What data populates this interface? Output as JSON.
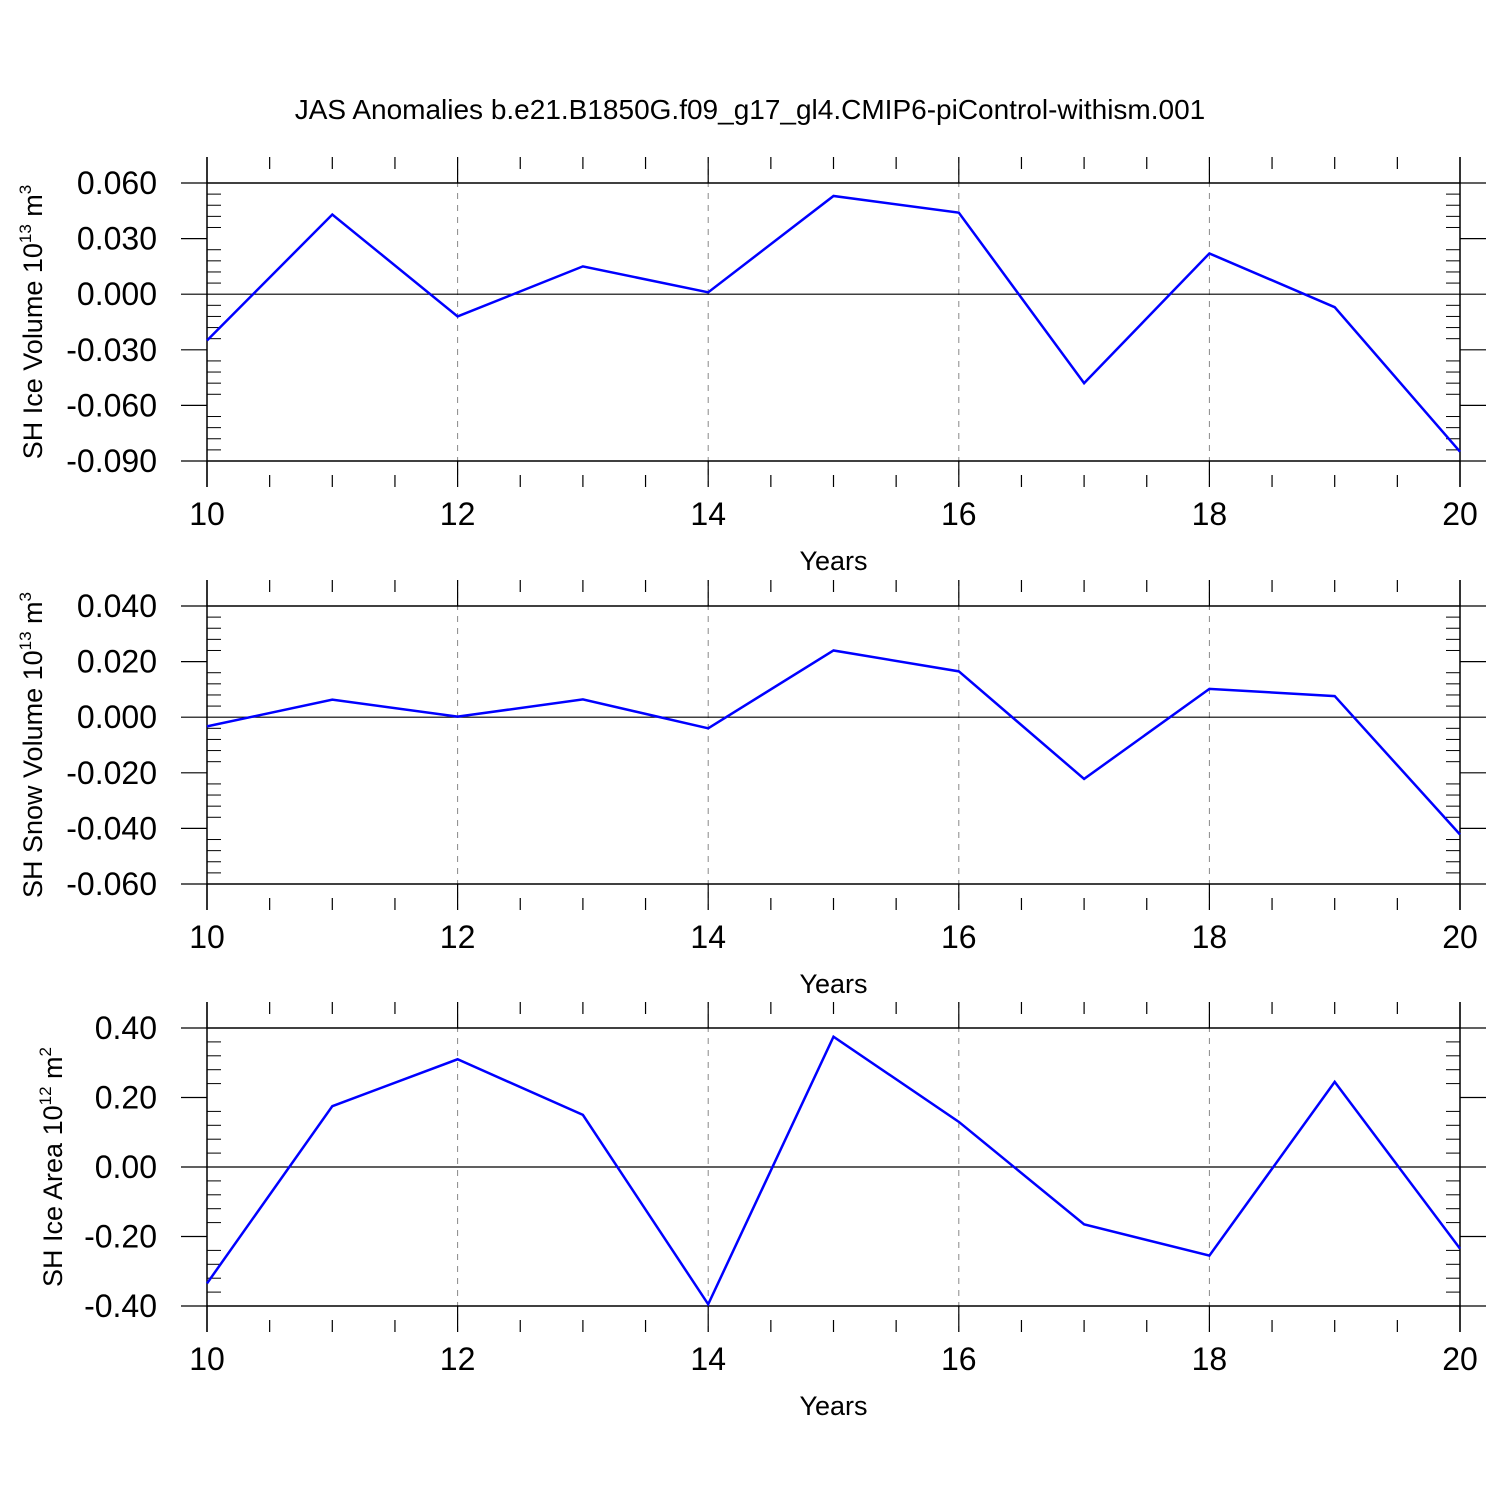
{
  "title": "JAS Anomalies b.e21.B1850G.f09_g17_gl4.CMIP6-piControl-withism.001",
  "line_color": "#0000ff",
  "grid_color": "#888888",
  "chart_data": [
    {
      "type": "line",
      "xlabel": "Years",
      "ylabel": {
        "prefix": "SH Ice Volume 10",
        "exp": "13",
        "unit": " m",
        "unit_exp": "3"
      },
      "xlim": [
        10,
        20
      ],
      "ylim": [
        -0.09,
        0.06
      ],
      "xticks": [
        10,
        12,
        14,
        16,
        18,
        20
      ],
      "xtick_labels": [
        "10",
        "12",
        "14",
        "16",
        "18",
        "20"
      ],
      "yticks": [
        0.06,
        0.03,
        0.0,
        -0.03,
        -0.06,
        -0.09
      ],
      "ytick_labels": [
        "0.060",
        "0.030",
        "0.000",
        "-0.030",
        "-0.060",
        "-0.090"
      ],
      "grid": "vertical dashed at major x ticks; solid line at y = 0",
      "x": [
        10,
        11,
        12,
        13,
        14,
        15,
        16,
        17,
        18,
        19,
        20
      ],
      "series": [
        {
          "values": [
            -0.025,
            0.043,
            -0.012,
            0.015,
            0.001,
            0.053,
            0.044,
            -0.048,
            0.022,
            -0.007,
            -0.085
          ]
        }
      ]
    },
    {
      "type": "line",
      "xlabel": "Years",
      "ylabel": {
        "prefix": "SH Snow Volume 10",
        "exp": "13",
        "unit": " m",
        "unit_exp": "3"
      },
      "xlim": [
        10,
        20
      ],
      "ylim": [
        -0.06,
        0.04
      ],
      "xticks": [
        10,
        12,
        14,
        16,
        18,
        20
      ],
      "xtick_labels": [
        "10",
        "12",
        "14",
        "16",
        "18",
        "20"
      ],
      "yticks": [
        0.04,
        0.02,
        0.0,
        -0.02,
        -0.04,
        -0.06
      ],
      "ytick_labels": [
        "0.040",
        "0.020",
        "0.000",
        "-0.020",
        "-0.040",
        "-0.060"
      ],
      "grid": "vertical dashed at major x ticks; solid line at y = 0",
      "x": [
        10,
        11,
        12,
        13,
        14,
        15,
        16,
        17,
        18,
        19,
        20
      ],
      "series": [
        {
          "values": [
            -0.0033,
            0.0063,
            0.0002,
            0.0064,
            -0.004,
            0.024,
            0.0165,
            -0.0222,
            0.0102,
            0.0076,
            -0.0422
          ]
        }
      ]
    },
    {
      "type": "line",
      "xlabel": "Years",
      "ylabel": {
        "prefix": "SH Ice Area 10",
        "exp": "12",
        "unit": " m",
        "unit_exp": "2"
      },
      "xlim": [
        10,
        20
      ],
      "ylim": [
        -0.4,
        0.4
      ],
      "xticks": [
        10,
        12,
        14,
        16,
        18,
        20
      ],
      "xtick_labels": [
        "10",
        "12",
        "14",
        "16",
        "18",
        "20"
      ],
      "yticks": [
        0.4,
        0.2,
        0.0,
        -0.2,
        -0.4
      ],
      "ytick_labels": [
        "0.40",
        "0.20",
        "0.00",
        "-0.20",
        "-0.40"
      ],
      "grid": "vertical dashed at major x ticks; solid line at y = 0",
      "x": [
        10,
        11,
        12,
        13,
        14,
        15,
        16,
        17,
        18,
        19,
        20
      ],
      "series": [
        {
          "values": [
            -0.335,
            0.175,
            0.31,
            0.15,
            -0.395,
            0.375,
            0.13,
            -0.165,
            -0.255,
            0.245,
            -0.235
          ]
        }
      ]
    }
  ]
}
